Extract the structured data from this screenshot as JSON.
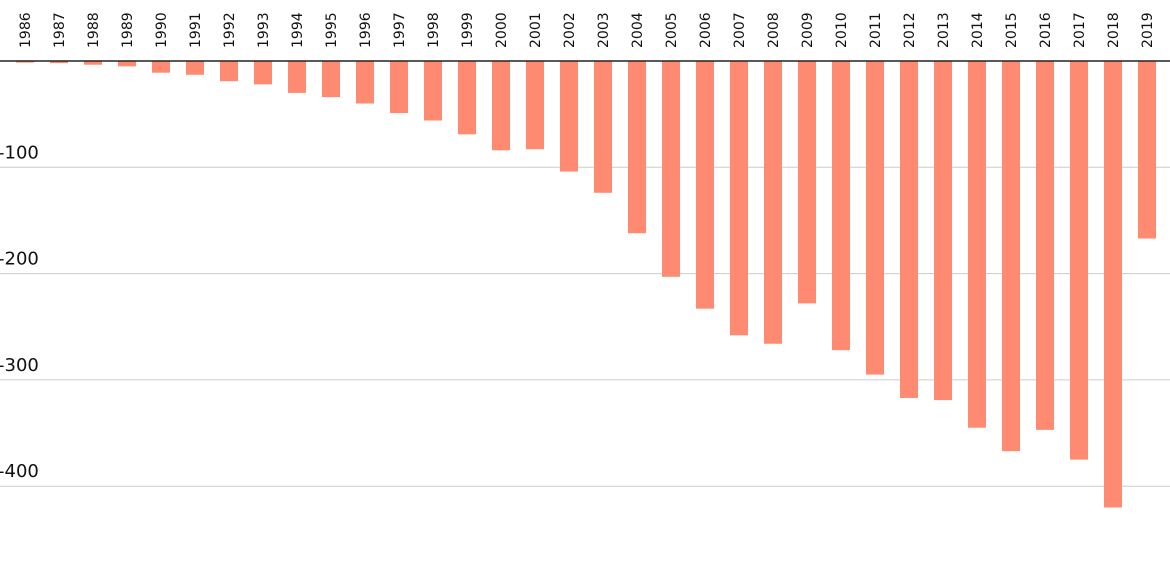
{
  "chart_data": {
    "type": "bar",
    "title": "",
    "xlabel": "",
    "ylabel": "",
    "categories": [
      "1986",
      "1987",
      "1988",
      "1989",
      "1990",
      "1991",
      "1992",
      "1993",
      "1994",
      "1995",
      "1996",
      "1997",
      "1998",
      "1999",
      "2000",
      "2001",
      "2002",
      "2003",
      "2004",
      "2005",
      "2006",
      "2007",
      "2008",
      "2009",
      "2010",
      "2011",
      "2012",
      "2013",
      "2014",
      "2015",
      "2016",
      "2017",
      "2018",
      "2019"
    ],
    "values": [
      -1.5,
      -2,
      -3.5,
      -5,
      -11,
      -13,
      -19,
      -22,
      -30,
      -34,
      -40,
      -49,
      -56,
      -69,
      -84,
      -83,
      -104,
      -124,
      -162,
      -203,
      -233,
      -258,
      -266,
      -228,
      -272,
      -295,
      -317,
      -319,
      -345,
      -367,
      -347,
      -375,
      -420,
      -167
    ],
    "ylim": [
      -470,
      0
    ],
    "yticks": [
      -100,
      -200,
      -300,
      -400
    ],
    "ytick_labels": [
      "-100",
      "-200",
      "-300",
      "-400"
    ],
    "grid": true,
    "bar_color": "#ff8a72",
    "grid_color": "#cccccc",
    "zero_line_color": "#222222"
  }
}
